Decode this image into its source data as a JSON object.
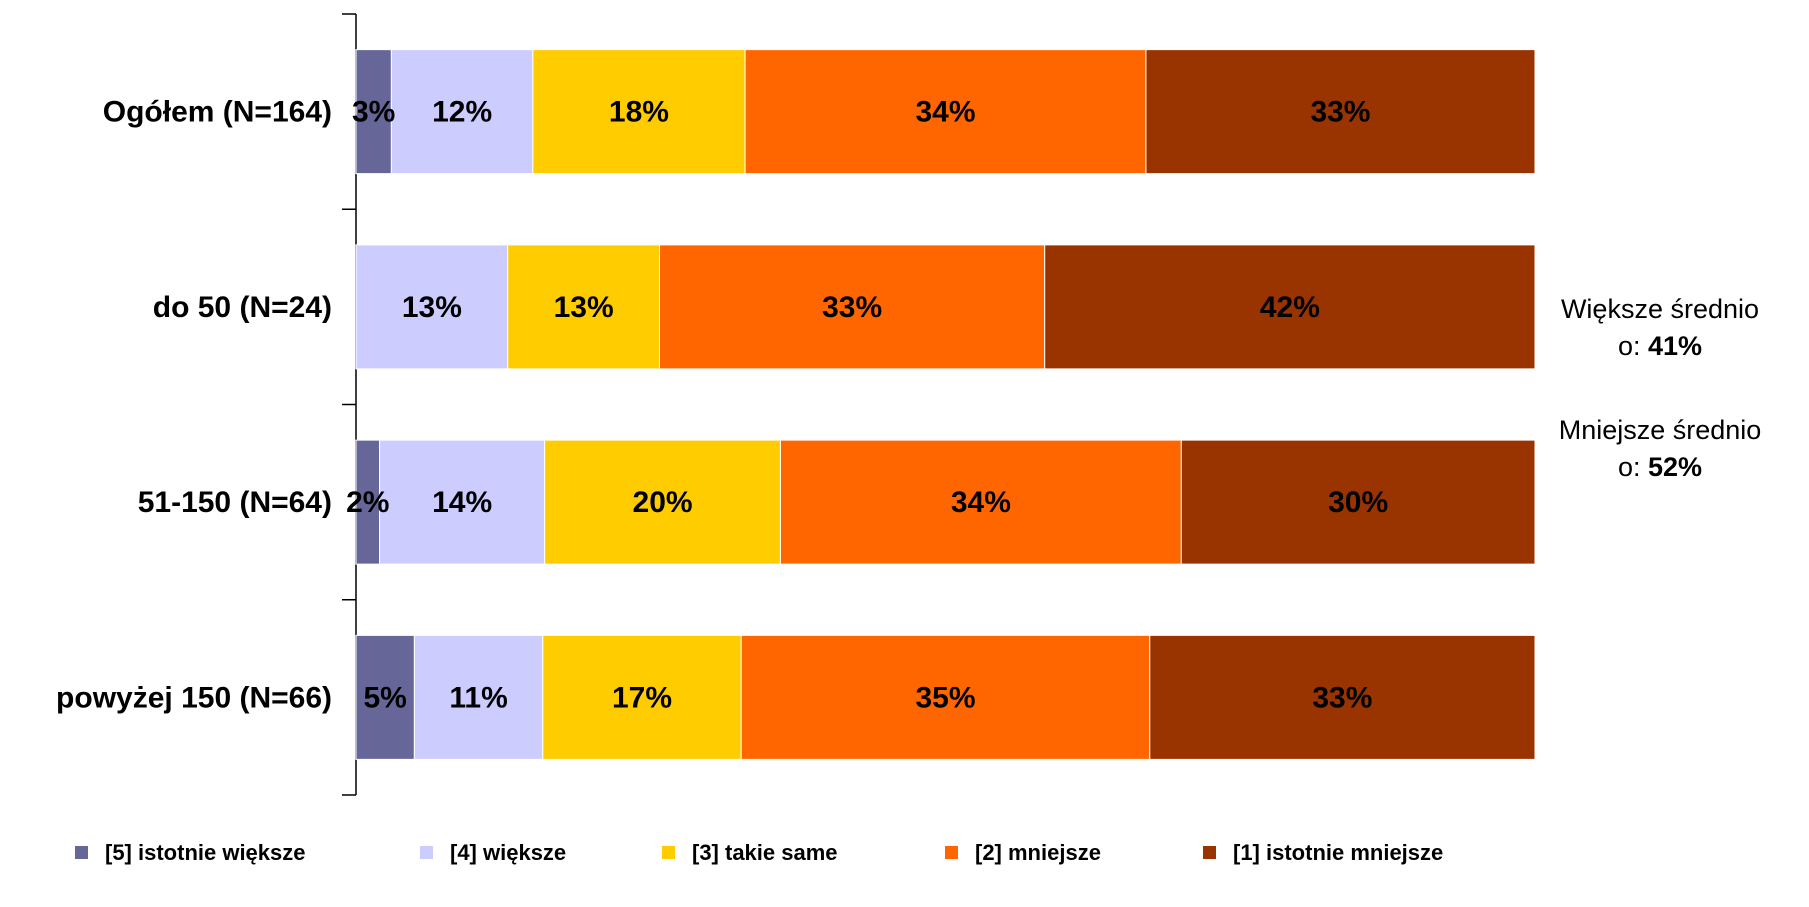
{
  "chart_data": {
    "type": "bar",
    "orientation": "horizontal",
    "stacked": true,
    "categories": [
      "Ogółem (N=164)",
      "do 50 (N=24)",
      "51-150 (N=64)",
      "powyżej 150 (N=66)"
    ],
    "series": [
      {
        "name": "[5] istotnie większe",
        "color": "#666699",
        "values": [
          3,
          0,
          2,
          5
        ],
        "labels": [
          "3%",
          "",
          "2%",
          "5%"
        ]
      },
      {
        "name": "[4] większe",
        "color": "#CCCCFF",
        "values": [
          12,
          13,
          14,
          11
        ],
        "labels": [
          "12%",
          "13%",
          "14%",
          "11%"
        ]
      },
      {
        "name": "[3] takie same",
        "color": "#FFCC00",
        "values": [
          18,
          13,
          20,
          17
        ],
        "labels": [
          "18%",
          "13%",
          "20%",
          "17%"
        ]
      },
      {
        "name": "[2] mniejsze",
        "color": "#FF6600",
        "values": [
          34,
          33,
          34,
          35
        ],
        "labels": [
          "34%",
          "33%",
          "34%",
          "35%"
        ]
      },
      {
        "name": "[1] istotnie mniejsze",
        "color": "#993300",
        "values": [
          33,
          42,
          30,
          33
        ],
        "labels": [
          "33%",
          "42%",
          "30%",
          "33%"
        ]
      }
    ],
    "xlim": [
      0,
      100
    ],
    "legend_position": "bottom",
    "grid": false
  },
  "annotations": {
    "larger_prefix": "Większe średnio",
    "larger_line2": "o: ",
    "larger_value": "41%",
    "smaller_prefix": "Mniejsze średnio",
    "smaller_line2": "o: ",
    "smaller_value": "52%"
  }
}
